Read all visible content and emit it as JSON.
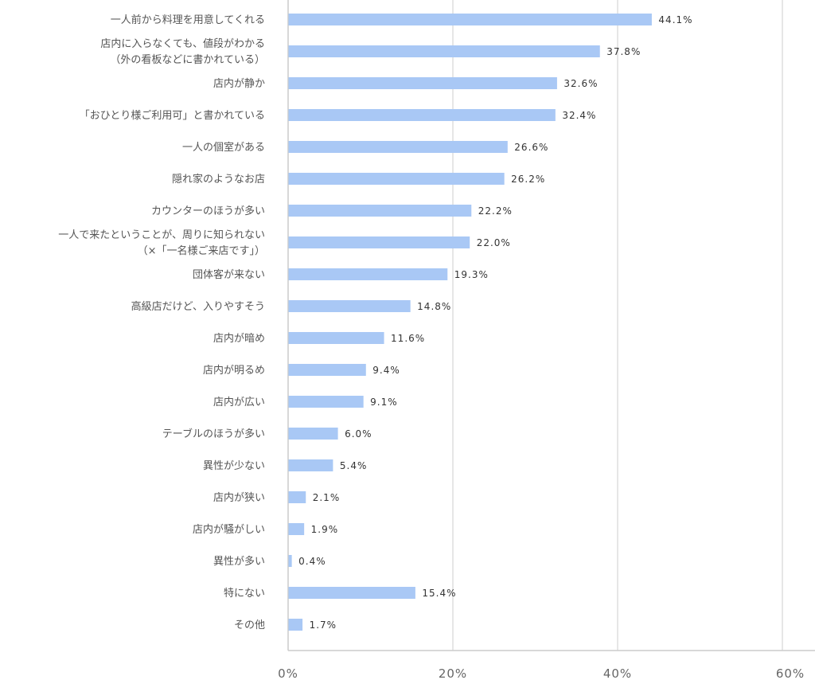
{
  "chart_data": {
    "type": "bar",
    "orientation": "horizontal",
    "title": "",
    "xlabel": "",
    "ylabel": "",
    "xlim": [
      0,
      60
    ],
    "x_ticks": [
      0,
      20,
      40,
      60
    ],
    "x_tick_labels": [
      "0%",
      "20%",
      "40%",
      "60%"
    ],
    "grid": true,
    "bar_color": "#a9c8f5",
    "categories": [
      [
        "一人前から料理を用意してくれる"
      ],
      [
        "店内に入らなくても、値段がわかる",
        "（外の看板などに書かれている）"
      ],
      [
        "店内が静か"
      ],
      [
        "「おひとり様ご利用可」と書かれている"
      ],
      [
        "一人の個室がある"
      ],
      [
        "隠れ家のようなお店"
      ],
      [
        "カウンターのほうが多い"
      ],
      [
        "一人で来たということが、周りに知られない",
        "（×「一名様ご来店です」）"
      ],
      [
        "団体客が来ない"
      ],
      [
        "高級店だけど、入りやすそう"
      ],
      [
        "店内が暗め"
      ],
      [
        "店内が明るめ"
      ],
      [
        "店内が広い"
      ],
      [
        "テーブルのほうが多い"
      ],
      [
        "異性が少ない"
      ],
      [
        "店内が狭い"
      ],
      [
        "店内が騒がしい"
      ],
      [
        "異性が多い"
      ],
      [
        "特にない"
      ],
      [
        "その他"
      ]
    ],
    "values": [
      44.1,
      37.8,
      32.6,
      32.4,
      26.6,
      26.2,
      22.2,
      22.0,
      19.3,
      14.8,
      11.6,
      9.4,
      9.1,
      6.0,
      5.4,
      2.1,
      1.9,
      0.4,
      15.4,
      1.7
    ],
    "value_labels": [
      "44.1%",
      "37.8%",
      "32.6%",
      "32.4%",
      "26.6%",
      "26.2%",
      "22.2%",
      "22.0%",
      "19.3%",
      "14.8%",
      "11.6%",
      "9.4%",
      "9.1%",
      "6.0%",
      "5.4%",
      "2.1%",
      "1.9%",
      "0.4%",
      "15.4%",
      "1.7%"
    ]
  }
}
